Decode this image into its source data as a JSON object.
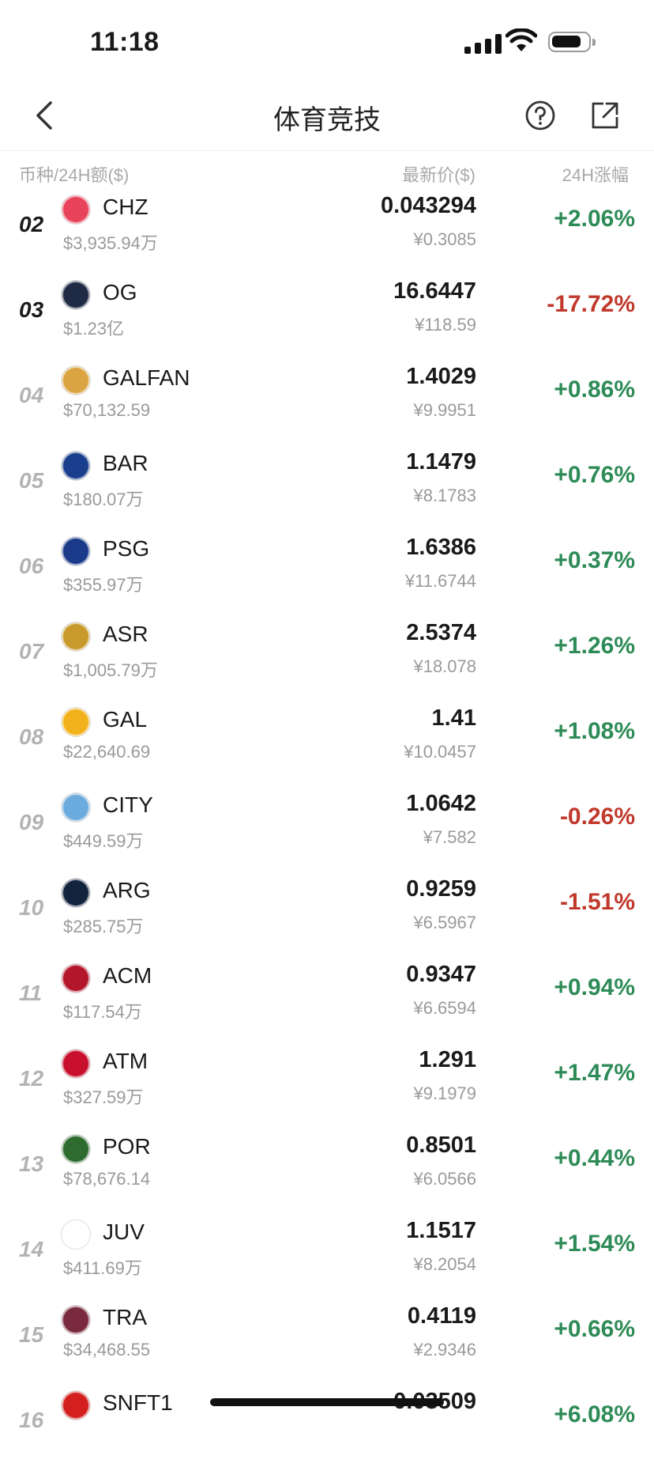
{
  "status_bar": {
    "time": "11:18"
  },
  "nav": {
    "title": "体育竞技"
  },
  "header": {
    "col1": "币种/24H额($)",
    "col2": "最新价($)",
    "col3": "24H涨幅"
  },
  "colors": {
    "up": "#2e8b57",
    "down": "#c0392b"
  },
  "rows": [
    {
      "rank": "02",
      "symbol": "CHZ",
      "volume": "$3,935.94万",
      "price": "0.043294",
      "price_cny": "¥0.3085",
      "change": "+2.06%",
      "dir": "up",
      "logo_color": "#e8435a",
      "top": true
    },
    {
      "rank": "03",
      "symbol": "OG",
      "volume": "$1.23亿",
      "price": "16.6447",
      "price_cny": "¥118.59",
      "change": "-17.72%",
      "dir": "down",
      "logo_color": "#1f2a44",
      "top": true
    },
    {
      "rank": "04",
      "symbol": "GALFAN",
      "volume": "$70,132.59",
      "price": "1.4029",
      "price_cny": "¥9.9951",
      "change": "+0.86%",
      "dir": "up",
      "logo_color": "#d9a441"
    },
    {
      "rank": "05",
      "symbol": "BAR",
      "volume": "$180.07万",
      "price": "1.1479",
      "price_cny": "¥8.1783",
      "change": "+0.76%",
      "dir": "up",
      "logo_color": "#1a3f8c"
    },
    {
      "rank": "06",
      "symbol": "PSG",
      "volume": "$355.97万",
      "price": "1.6386",
      "price_cny": "¥11.6744",
      "change": "+0.37%",
      "dir": "up",
      "logo_color": "#1b3a8a"
    },
    {
      "rank": "07",
      "symbol": "ASR",
      "volume": "$1,005.79万",
      "price": "2.5374",
      "price_cny": "¥18.078",
      "change": "+1.26%",
      "dir": "up",
      "logo_color": "#c79a2b"
    },
    {
      "rank": "08",
      "symbol": "GAL",
      "volume": "$22,640.69",
      "price": "1.41",
      "price_cny": "¥10.0457",
      "change": "+1.08%",
      "dir": "up",
      "logo_color": "#f2b21b"
    },
    {
      "rank": "09",
      "symbol": "CITY",
      "volume": "$449.59万",
      "price": "1.0642",
      "price_cny": "¥7.582",
      "change": "-0.26%",
      "dir": "down",
      "logo_color": "#6cabdd"
    },
    {
      "rank": "10",
      "symbol": "ARG",
      "volume": "$285.75万",
      "price": "0.9259",
      "price_cny": "¥6.5967",
      "change": "-1.51%",
      "dir": "down",
      "logo_color": "#12233d"
    },
    {
      "rank": "11",
      "symbol": "ACM",
      "volume": "$117.54万",
      "price": "0.9347",
      "price_cny": "¥6.6594",
      "change": "+0.94%",
      "dir": "up",
      "logo_color": "#b3162b"
    },
    {
      "rank": "12",
      "symbol": "ATM",
      "volume": "$327.59万",
      "price": "1.291",
      "price_cny": "¥9.1979",
      "change": "+1.47%",
      "dir": "up",
      "logo_color": "#c8102e"
    },
    {
      "rank": "13",
      "symbol": "POR",
      "volume": "$78,676.14",
      "price": "0.8501",
      "price_cny": "¥6.0566",
      "change": "+0.44%",
      "dir": "up",
      "logo_color": "#2e6b2f"
    },
    {
      "rank": "14",
      "symbol": "JUV",
      "volume": "$411.69万",
      "price": "1.1517",
      "price_cny": "¥8.2054",
      "change": "+1.54%",
      "dir": "up",
      "logo_color": "#ffffff"
    },
    {
      "rank": "15",
      "symbol": "TRA",
      "volume": "$34,468.55",
      "price": "0.4119",
      "price_cny": "¥2.9346",
      "change": "+0.66%",
      "dir": "up",
      "logo_color": "#7a2a3d"
    },
    {
      "rank": "16",
      "symbol": "SNFT1",
      "volume": "",
      "price": "0.03509",
      "price_cny": "",
      "change": "+6.08%",
      "dir": "up",
      "logo_color": "#d3201f"
    }
  ]
}
